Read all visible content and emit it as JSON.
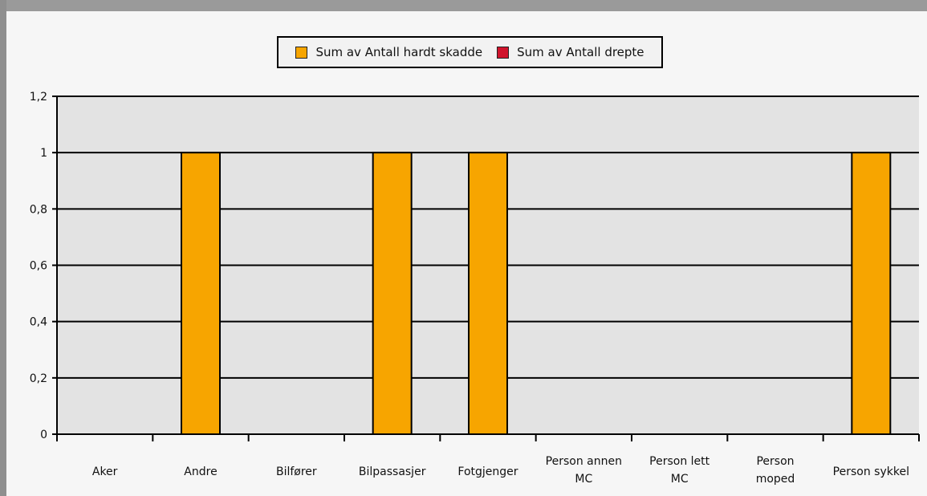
{
  "chart_data": {
    "type": "bar",
    "categories": [
      "Aker",
      "Andre",
      "Bilfører",
      "Bilpassasjer",
      "Fotgjenger",
      "Person annen MC",
      "Person lett MC",
      "Person moped",
      "Person sykkel"
    ],
    "category_lines": [
      [
        "Aker"
      ],
      [
        "Andre"
      ],
      [
        "Bilfører"
      ],
      [
        "Bilpassasjer"
      ],
      [
        "Fotgjenger"
      ],
      [
        "Person annen",
        "MC"
      ],
      [
        "Person lett",
        "MC"
      ],
      [
        "Person",
        "moped"
      ],
      [
        "Person sykkel"
      ]
    ],
    "series": [
      {
        "name": "Sum av Antall hardt skadde",
        "color": "#f7a500",
        "values": [
          0,
          1,
          0,
          1,
          1,
          0,
          0,
          0,
          1
        ]
      },
      {
        "name": "Sum av Antall drepte",
        "color": "#d0142c",
        "values": [
          0,
          0,
          0,
          0,
          0,
          0,
          0,
          0,
          0
        ]
      }
    ],
    "y_ticks": [
      "0",
      "0,2",
      "0,4",
      "0,6",
      "0,8",
      "1",
      "1,2"
    ],
    "ylim": [
      0,
      1.2
    ],
    "grid": true,
    "legend_position": "top-center",
    "title": "",
    "xlabel": "",
    "ylabel": ""
  }
}
